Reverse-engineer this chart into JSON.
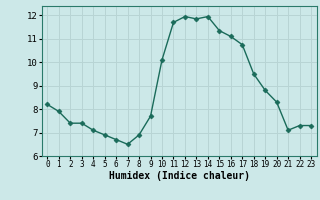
{
  "x": [
    0,
    1,
    2,
    3,
    4,
    5,
    6,
    7,
    8,
    9,
    10,
    11,
    12,
    13,
    14,
    15,
    16,
    17,
    18,
    19,
    20,
    21,
    22,
    23
  ],
  "y": [
    8.2,
    7.9,
    7.4,
    7.4,
    7.1,
    6.9,
    6.7,
    6.5,
    6.9,
    7.7,
    10.1,
    11.7,
    11.95,
    11.85,
    11.95,
    11.35,
    11.1,
    10.75,
    9.5,
    8.8,
    8.3,
    7.1,
    7.3,
    7.3
  ],
  "xlabel": "Humidex (Indice chaleur)",
  "ylim": [
    6,
    12.4
  ],
  "xlim": [
    -0.5,
    23.5
  ],
  "yticks": [
    6,
    7,
    8,
    9,
    10,
    11,
    12
  ],
  "xticks": [
    0,
    1,
    2,
    3,
    4,
    5,
    6,
    7,
    8,
    9,
    10,
    11,
    12,
    13,
    14,
    15,
    16,
    17,
    18,
    19,
    20,
    21,
    22,
    23
  ],
  "line_color": "#1a6b5a",
  "marker_color": "#1a6b5a",
  "bg_color": "#cce8e8",
  "grid_color": "#b8d4d4",
  "axes_bg": "#cce8e8",
  "tick_label_color": "#000000",
  "xlabel_color": "#000000"
}
